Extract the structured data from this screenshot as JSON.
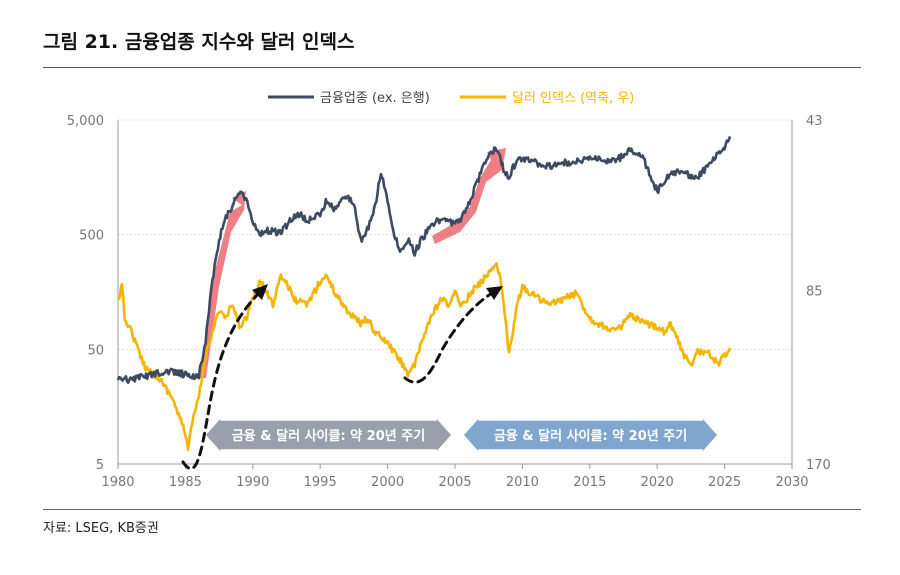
{
  "figure": {
    "title": "그림 21. 금융업종 지수와 달러 인덱스",
    "source": "자료: LSEG, KB증권"
  },
  "colors": {
    "financials": "#3e4a5f",
    "dollar": "#f5b400",
    "highlight": "#e8545f",
    "band_left": "#9aa0ab",
    "band_right": "#7fa6cf",
    "grid": "#dddddd",
    "axis": "#999999"
  },
  "chart_data": {
    "type": "line",
    "title": "",
    "legend": [
      "금융업종 (ex. 은행)",
      "달러 인덱스 (역축, 우)"
    ],
    "x_ticks": [
      "1980",
      "1985",
      "1990",
      "1995",
      "2000",
      "2005",
      "2010",
      "2015",
      "2020",
      "2025",
      "2030"
    ],
    "xlim": [
      1980,
      2030
    ],
    "y_left": {
      "scale": "log",
      "ticks": [
        "5,000",
        "500",
        "50",
        "5"
      ],
      "tick_values": [
        5000,
        500,
        50,
        5
      ],
      "lim": [
        5,
        5000
      ]
    },
    "y_right": {
      "scale": "log-inverted",
      "ticks": [
        "43",
        "85",
        "170"
      ],
      "tick_values": [
        43,
        85,
        170
      ],
      "lim": [
        43,
        170
      ]
    },
    "series": [
      {
        "name": "금융업종 (ex. 은행)",
        "axis": "left",
        "points": [
          [
            1980,
            28
          ],
          [
            1981,
            27
          ],
          [
            1982,
            29
          ],
          [
            1983,
            31
          ],
          [
            1984,
            32
          ],
          [
            1985,
            30
          ],
          [
            1985.5,
            29
          ],
          [
            1986,
            30
          ],
          [
            1986.5,
            60
          ],
          [
            1987,
            200
          ],
          [
            1987.5,
            450
          ],
          [
            1988,
            700
          ],
          [
            1988.5,
            900
          ],
          [
            1989,
            1200
          ],
          [
            1989.5,
            1000
          ],
          [
            1990,
            650
          ],
          [
            1990.5,
            500
          ],
          [
            1991,
            550
          ],
          [
            1992,
            520
          ],
          [
            1993,
            700
          ],
          [
            1993.5,
            750
          ],
          [
            1994,
            650
          ],
          [
            1995,
            750
          ],
          [
            1995.5,
            1000
          ],
          [
            1996,
            850
          ],
          [
            1997,
            1100
          ],
          [
            1997.5,
            900
          ],
          [
            1998,
            450
          ],
          [
            1998.5,
            550
          ],
          [
            1999,
            800
          ],
          [
            1999.5,
            1700
          ],
          [
            2000,
            1000
          ],
          [
            2000.5,
            500
          ],
          [
            2001,
            350
          ],
          [
            2001.5,
            450
          ],
          [
            2002,
            350
          ],
          [
            2002.5,
            450
          ],
          [
            2003,
            550
          ],
          [
            2004,
            700
          ],
          [
            2004.5,
            650
          ],
          [
            2005,
            620
          ],
          [
            2005.5,
            700
          ],
          [
            2006,
            900
          ],
          [
            2006.5,
            1300
          ],
          [
            2007,
            1800
          ],
          [
            2007.5,
            2500
          ],
          [
            2008,
            2800
          ],
          [
            2008.3,
            2600
          ],
          [
            2008.6,
            1800
          ],
          [
            2009,
            1600
          ],
          [
            2009.5,
            2100
          ],
          [
            2010,
            2300
          ],
          [
            2011,
            2100
          ],
          [
            2012,
            2000
          ],
          [
            2013,
            2100
          ],
          [
            2014,
            2200
          ],
          [
            2015,
            2350
          ],
          [
            2016,
            2200
          ],
          [
            2017,
            2250
          ],
          [
            2018,
            2700
          ],
          [
            2019,
            2300
          ],
          [
            2019.5,
            1600
          ],
          [
            2020,
            1200
          ],
          [
            2020.5,
            1400
          ],
          [
            2021,
            1750
          ],
          [
            2022,
            1800
          ],
          [
            2022.5,
            1550
          ],
          [
            2023,
            1600
          ],
          [
            2024,
            2100
          ],
          [
            2024.5,
            2700
          ],
          [
            2025,
            2800
          ],
          [
            2025.4,
            3600
          ]
        ]
      },
      {
        "name": "달러 인덱스 (역축, 우)",
        "axis": "right",
        "points": [
          [
            1980,
            88
          ],
          [
            1980.3,
            84
          ],
          [
            1980.5,
            95
          ],
          [
            1981,
            100
          ],
          [
            1981.5,
            108
          ],
          [
            1982,
            115
          ],
          [
            1982.5,
            118
          ],
          [
            1983,
            120
          ],
          [
            1983.5,
            125
          ],
          [
            1984,
            130
          ],
          [
            1984.5,
            140
          ],
          [
            1985,
            150
          ],
          [
            1985.2,
            160
          ],
          [
            1985.5,
            145
          ],
          [
            1986,
            130
          ],
          [
            1986.5,
            110
          ],
          [
            1987,
            100
          ],
          [
            1987.5,
            92
          ],
          [
            1988,
            95
          ],
          [
            1988.5,
            90
          ],
          [
            1989,
            98
          ],
          [
            1989.5,
            95
          ],
          [
            1990,
            88
          ],
          [
            1990.5,
            82
          ],
          [
            1991,
            85
          ],
          [
            1991.5,
            90
          ],
          [
            1992,
            80
          ],
          [
            1992.5,
            82
          ],
          [
            1993,
            88
          ],
          [
            1994,
            90
          ],
          [
            1995,
            82
          ],
          [
            1995.5,
            80
          ],
          [
            1996,
            85
          ],
          [
            1997,
            92
          ],
          [
            1998,
            97
          ],
          [
            1998.5,
            95
          ],
          [
            1999,
            100
          ],
          [
            2000,
            105
          ],
          [
            2001,
            113
          ],
          [
            2001.5,
            118
          ],
          [
            2002,
            115
          ],
          [
            2002.5,
            105
          ],
          [
            2003,
            97
          ],
          [
            2003.5,
            92
          ],
          [
            2004,
            88
          ],
          [
            2004.5,
            90
          ],
          [
            2005,
            86
          ],
          [
            2005.5,
            90
          ],
          [
            2006,
            87
          ],
          [
            2006.5,
            84
          ],
          [
            2007,
            82
          ],
          [
            2007.5,
            79
          ],
          [
            2008,
            76
          ],
          [
            2008.3,
            80
          ],
          [
            2008.6,
            88
          ],
          [
            2009,
            110
          ],
          [
            2009.3,
            100
          ],
          [
            2009.6,
            90
          ],
          [
            2010,
            84
          ],
          [
            2011,
            87
          ],
          [
            2012,
            90
          ],
          [
            2013,
            88
          ],
          [
            2014,
            86
          ],
          [
            2015,
            95
          ],
          [
            2016,
            98
          ],
          [
            2017,
            100
          ],
          [
            2018,
            94
          ],
          [
            2019,
            97
          ],
          [
            2020,
            98
          ],
          [
            2020.5,
            100
          ],
          [
            2021,
            97
          ],
          [
            2022,
            110
          ],
          [
            2022.5,
            115
          ],
          [
            2023,
            108
          ],
          [
            2024,
            110
          ],
          [
            2024.5,
            114
          ],
          [
            2025,
            110
          ],
          [
            2025.4,
            107
          ]
        ]
      }
    ],
    "annotations": {
      "band_left": "금융 & 달러 사이클: 약 20년 주기",
      "band_right": "금융 & 달러 사이클: 약 20년 주기"
    }
  }
}
